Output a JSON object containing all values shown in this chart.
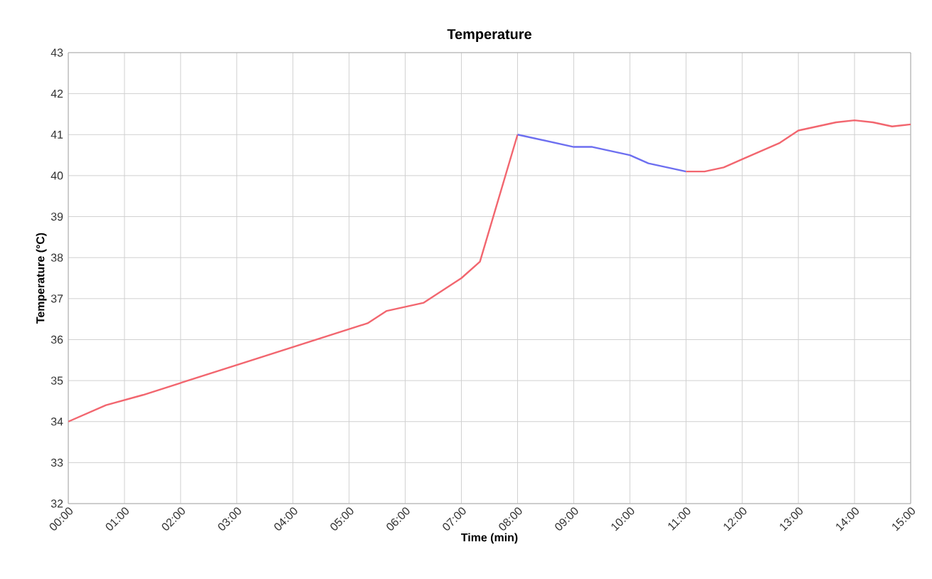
{
  "chart_data": {
    "type": "line",
    "title": "Temperature",
    "xlabel": "Time (min)",
    "ylabel": "Temperature (°C)",
    "series": [
      {
        "color": "#f2666f",
        "x": [
          0,
          0.67,
          1.33,
          5.33,
          5.67,
          6.33,
          7,
          7.33,
          8
        ],
        "values": [
          34,
          34.4,
          34.65,
          36.4,
          36.7,
          36.9,
          37.5,
          37.9,
          41
        ]
      },
      {
        "color": "#6d6ff0",
        "x": [
          8,
          9,
          9.33,
          10,
          10.33,
          11
        ],
        "values": [
          41,
          40.7,
          40.7,
          40.5,
          40.3,
          40.1
        ]
      },
      {
        "color": "#f2666f",
        "x": [
          11,
          11.33,
          11.67,
          12,
          12.67,
          13,
          13.67,
          14,
          14.33,
          14.67,
          15
        ],
        "values": [
          40.1,
          40.1,
          40.2,
          40.4,
          40.8,
          41.1,
          41.3,
          41.35,
          41.3,
          41.2,
          41.25
        ]
      }
    ],
    "xlim": [
      0,
      15
    ],
    "xticks": [
      {
        "value": 0,
        "label": "00:00"
      },
      {
        "value": 1,
        "label": "01:00"
      },
      {
        "value": 2,
        "label": "02:00"
      },
      {
        "value": 3,
        "label": "03:00"
      },
      {
        "value": 4,
        "label": "04:00"
      },
      {
        "value": 5,
        "label": "05:00"
      },
      {
        "value": 6,
        "label": "06:00"
      },
      {
        "value": 7,
        "label": "07:00"
      },
      {
        "value": 8,
        "label": "08:00"
      },
      {
        "value": 9,
        "label": "09:00"
      },
      {
        "value": 10,
        "label": "10:00"
      },
      {
        "value": 11,
        "label": "11:00"
      },
      {
        "value": 12,
        "label": "12:00"
      },
      {
        "value": 13,
        "label": "13:00"
      },
      {
        "value": 14,
        "label": "14:00"
      },
      {
        "value": 15,
        "label": "15:00"
      }
    ],
    "ylim": [
      32,
      43
    ],
    "yticks": [
      32,
      33,
      34,
      35,
      36,
      37,
      38,
      39,
      40,
      41,
      42,
      43
    ],
    "grid": true,
    "marker": "none",
    "line_style": "solid"
  }
}
